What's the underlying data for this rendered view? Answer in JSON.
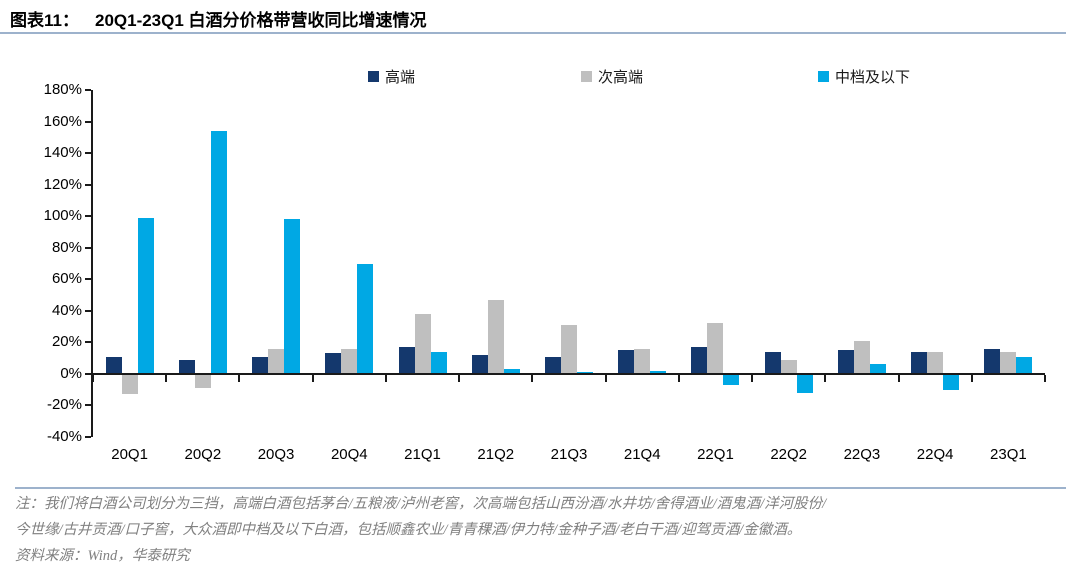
{
  "page": {
    "title_label": "图表11：",
    "title_text": "20Q1-23Q1 白酒分价格带营收同比增速情况",
    "note_line1": "注：我们将白酒公司划分为三挡，高端白酒包括茅台/五粮液/泸州老窖，次高端包括山西汾酒/水井坊/舍得酒业/酒鬼酒/洋河股份/",
    "note_line2": "今世缘/古井贡酒/口子窖，大众酒即中档及以下白酒，包括顺鑫农业/青青稞酒/伊力特/金种子酒/老白干酒/迎驾贡酒/金徽酒。",
    "source_line": "资料来源：Wind，华泰研究"
  },
  "colors": {
    "rule_blue": "#9DB2CC",
    "axis": "#1a1a1a",
    "note_text": "#808080"
  },
  "chart_data": {
    "type": "bar",
    "title": "20Q1-23Q1 白酒分价格带营收同比增速情况",
    "categories": [
      "20Q1",
      "20Q2",
      "20Q3",
      "20Q4",
      "21Q1",
      "21Q2",
      "21Q3",
      "21Q4",
      "22Q1",
      "22Q2",
      "22Q3",
      "22Q4",
      "23Q1"
    ],
    "series": [
      {
        "name": "高端",
        "color": "#14386D",
        "values": [
          11,
          9,
          11,
          13,
          17,
          12,
          11,
          15,
          17,
          14,
          15,
          14,
          16
        ]
      },
      {
        "name": "次高端",
        "color": "#BFBFBF",
        "values": [
          -13,
          -9,
          16,
          16,
          38,
          47,
          31,
          16,
          32,
          9,
          21,
          14,
          14
        ]
      },
      {
        "name": "中档及以下",
        "color": "#00A8E4",
        "values": [
          99,
          154,
          98,
          70,
          14,
          3,
          1,
          2,
          -7,
          -12,
          6,
          -10,
          11
        ]
      }
    ],
    "ylim": [
      -40,
      180
    ],
    "y_tick_step": 20,
    "y_tick_suffix": "%",
    "xlabel": "",
    "ylabel": "",
    "grid": false,
    "legend_position": "top"
  }
}
